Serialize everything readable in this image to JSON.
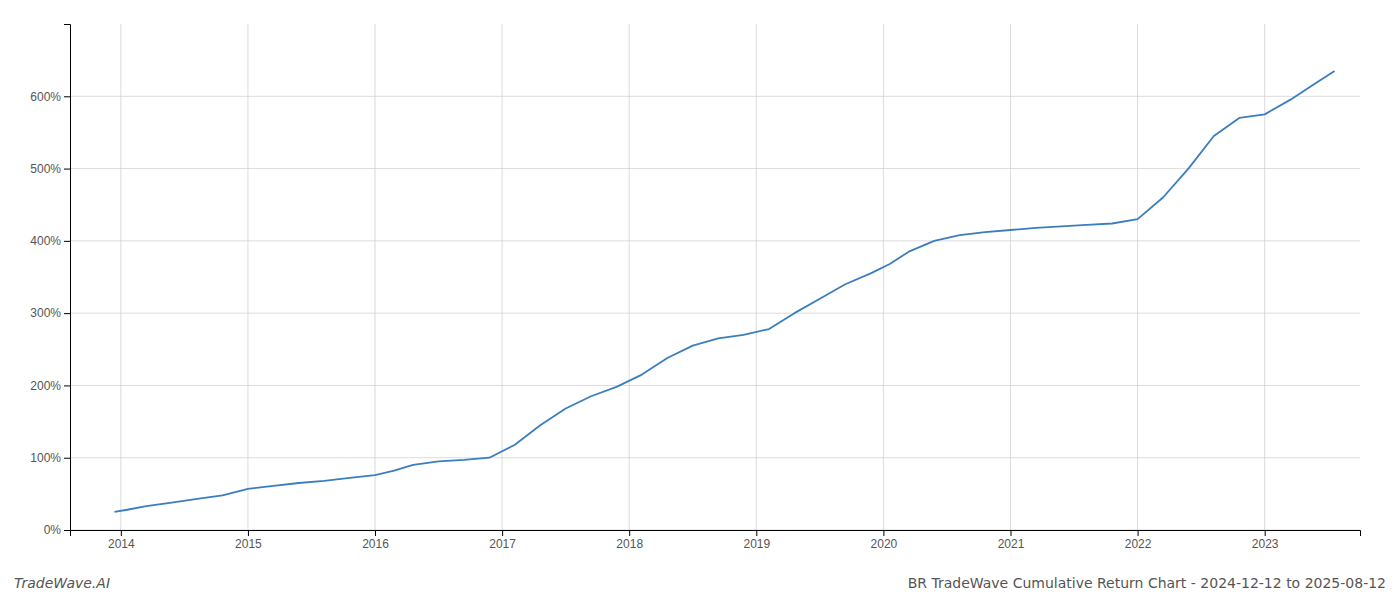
{
  "chart_data": {
    "type": "line",
    "title": "BR TradeWave Cumulative Return Chart - 2024-12-12 to 2025-08-12",
    "annotations": [
      "TradeWave.AI"
    ],
    "color": "#3a7ebf",
    "grid": true,
    "x": [
      2013.95,
      2014.05,
      2014.2,
      2014.4,
      2014.6,
      2014.8,
      2015.0,
      2015.2,
      2015.4,
      2015.6,
      2015.8,
      2016.0,
      2016.15,
      2016.3,
      2016.5,
      2016.7,
      2016.9,
      2017.1,
      2017.3,
      2017.5,
      2017.7,
      2017.9,
      2018.1,
      2018.3,
      2018.5,
      2018.7,
      2018.9,
      2019.1,
      2019.3,
      2019.5,
      2019.7,
      2019.9,
      2020.05,
      2020.2,
      2020.4,
      2020.6,
      2020.8,
      2021.0,
      2021.2,
      2021.4,
      2021.6,
      2021.8,
      2022.0,
      2022.2,
      2022.4,
      2022.6,
      2022.8,
      2023.0,
      2023.2,
      2023.4,
      2023.55
    ],
    "values": [
      25,
      28,
      33,
      38,
      43,
      48,
      57,
      61,
      65,
      68,
      72,
      76,
      82,
      90,
      95,
      97,
      100,
      118,
      145,
      168,
      185,
      198,
      215,
      238,
      255,
      265,
      270,
      278,
      300,
      320,
      340,
      355,
      368,
      385,
      400,
      408,
      412,
      415,
      418,
      420,
      422,
      424,
      430,
      460,
      500,
      545,
      570,
      575,
      595,
      618,
      635
    ],
    "xlim": [
      2013.6,
      2023.75
    ],
    "xticks": [
      2014,
      2015,
      2016,
      2017,
      2018,
      2019,
      2020,
      2021,
      2022,
      2023
    ],
    "ylim": [
      0,
      700
    ],
    "yticks": [
      {
        "value": 0,
        "label": "0%"
      },
      {
        "value": 100,
        "label": "100%"
      },
      {
        "value": 200,
        "label": "200%"
      },
      {
        "value": 300,
        "label": "300%"
      },
      {
        "value": 400,
        "label": "400%"
      },
      {
        "value": 500,
        "label": "500%"
      },
      {
        "value": 600,
        "label": "600%"
      }
    ]
  }
}
